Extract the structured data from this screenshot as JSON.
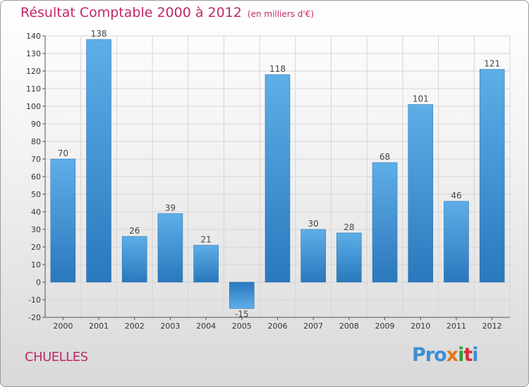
{
  "title": "Résultat Comptable 2000 à 2012",
  "subtitle": "(en milliers d'€)",
  "commune": "CHUELLES",
  "logo": {
    "p1": "Pro",
    "p2": "x",
    "p3": "i",
    "p4": "t",
    "p5": "i"
  },
  "colors": {
    "bar": "#4f9edd",
    "bar_dark": "#2a78bd",
    "title": "#c0286a",
    "grid": "#d5d5d5"
  },
  "chart_data": {
    "type": "bar",
    "title": "Résultat Comptable 2000 à 2012",
    "subtitle": "(en milliers d'€)",
    "xlabel": "",
    "ylabel": "",
    "categories": [
      "2000",
      "2001",
      "2002",
      "2003",
      "2004",
      "2005",
      "2006",
      "2007",
      "2008",
      "2009",
      "2010",
      "2011",
      "2012"
    ],
    "values": [
      70,
      138,
      26,
      39,
      21,
      -15,
      118,
      30,
      28,
      68,
      101,
      46,
      121
    ],
    "ylim": [
      -20,
      140
    ],
    "yticks": [
      -20,
      -10,
      0,
      10,
      20,
      30,
      40,
      50,
      60,
      70,
      80,
      90,
      100,
      110,
      120,
      130,
      140
    ],
    "grid": true
  }
}
